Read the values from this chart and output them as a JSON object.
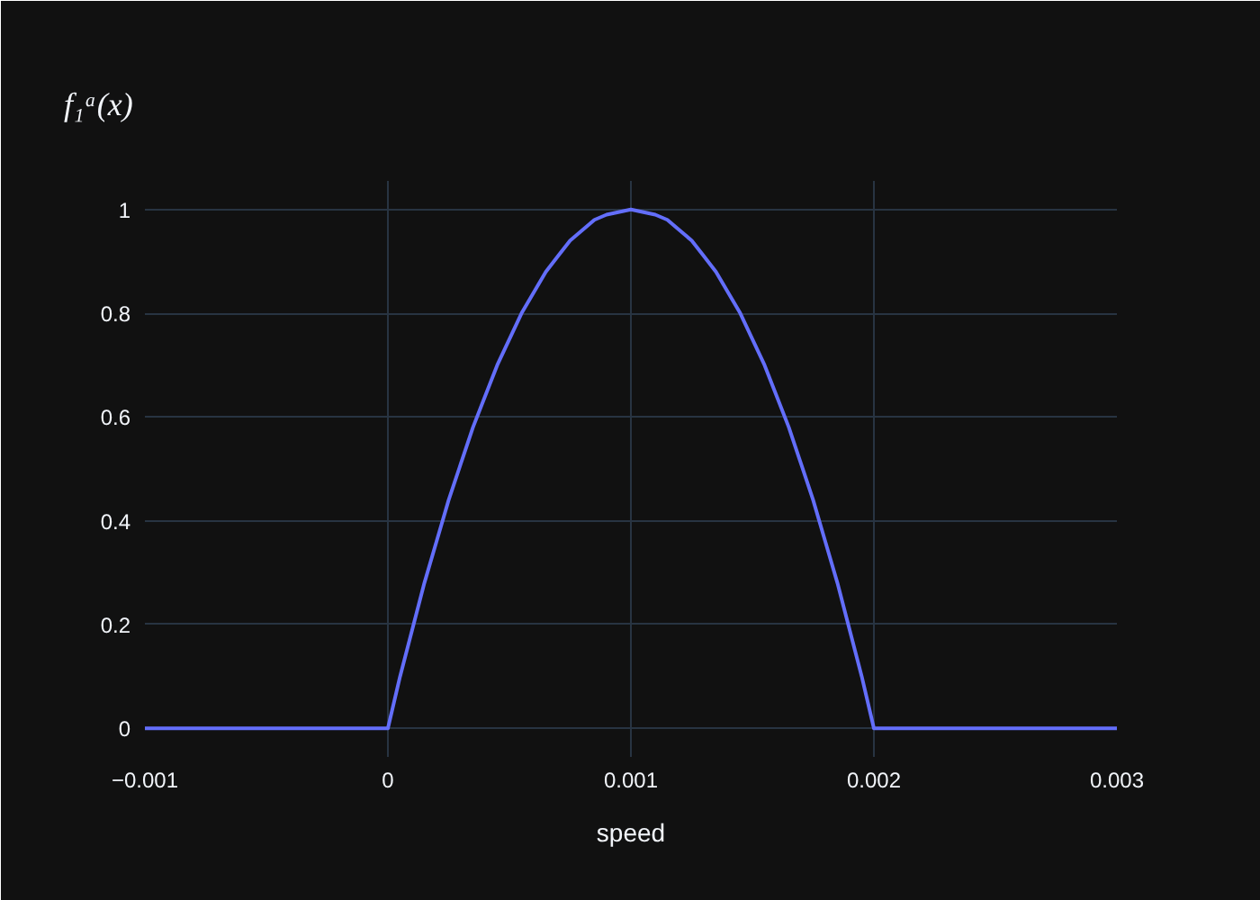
{
  "chart_data": {
    "type": "line",
    "title": "f₁ᵃ(x)",
    "xlabel": "speed",
    "x": [
      -0.001,
      0,
      5e-05,
      0.0001,
      0.00015,
      0.0002,
      0.00025,
      0.0003,
      0.00035,
      0.0004,
      0.00045,
      0.0005,
      0.00055,
      0.0006,
      0.00065,
      0.0007,
      0.00075,
      0.0008,
      0.00085,
      0.0009,
      0.001,
      0.0011,
      0.00115,
      0.0012,
      0.00125,
      0.0013,
      0.00135,
      0.0014,
      0.00145,
      0.0015,
      0.00155,
      0.0016,
      0.00165,
      0.0017,
      0.00175,
      0.0018,
      0.00185,
      0.0019,
      0.00195,
      0.002,
      0.003
    ],
    "series": [
      {
        "color": "#636efa",
        "values": [
          0,
          0,
          0.1,
          0.19,
          0.28,
          0.36,
          0.44,
          0.51,
          0.58,
          0.64,
          0.7,
          0.75,
          0.8,
          0.84,
          0.88,
          0.91,
          0.94,
          0.96,
          0.98,
          0.99,
          1,
          0.99,
          0.98,
          0.96,
          0.94,
          0.91,
          0.88,
          0.84,
          0.8,
          0.75,
          0.7,
          0.64,
          0.58,
          0.51,
          0.44,
          0.36,
          0.28,
          0.19,
          0.1,
          0,
          0
        ]
      }
    ],
    "xlim": [
      -0.001,
      0.003
    ],
    "ylim": [
      -0.055,
      1.055
    ],
    "xticks": [
      {
        "value": -0.001,
        "label": "−0.001"
      },
      0,
      0.001,
      0.002,
      0.003
    ],
    "yticks": [
      0,
      0.2,
      0.4,
      0.6,
      0.8,
      1
    ],
    "grid": true
  }
}
